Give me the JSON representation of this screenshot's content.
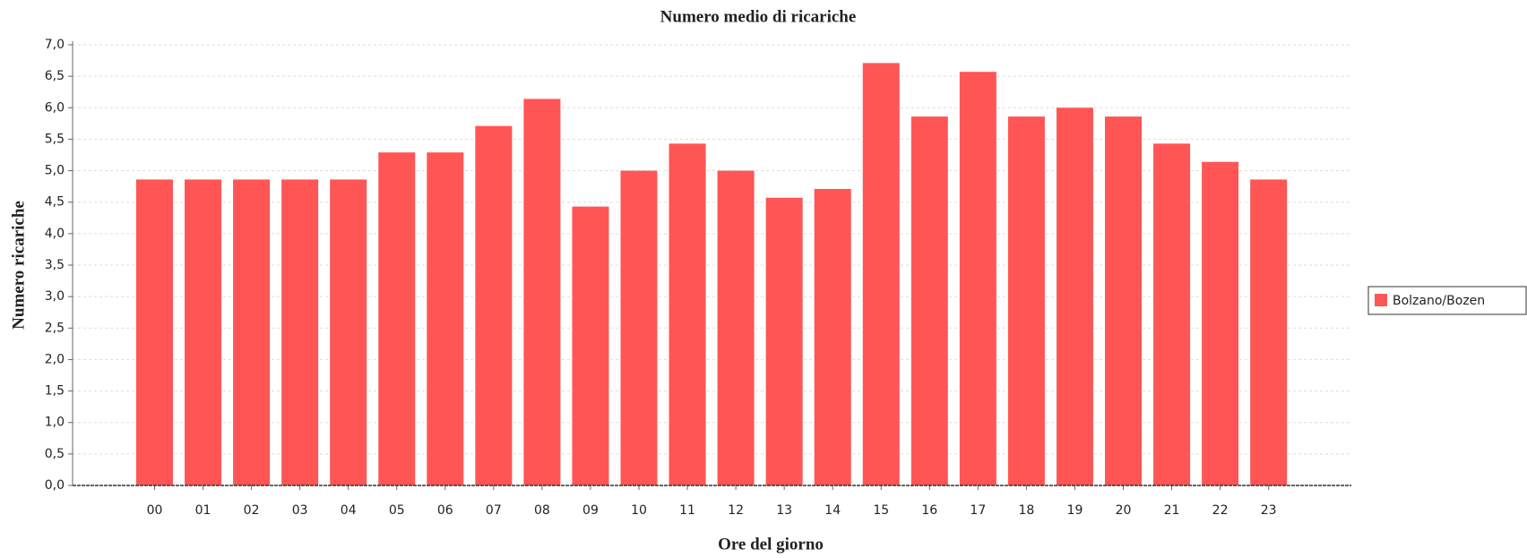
{
  "chart_data": {
    "type": "bar",
    "title": "Numero medio di ricariche",
    "x_label": "Ore del giorno",
    "y_label": "Numero ricariche",
    "categories": [
      "00",
      "01",
      "02",
      "03",
      "04",
      "05",
      "06",
      "07",
      "08",
      "09",
      "10",
      "11",
      "12",
      "13",
      "14",
      "15",
      "16",
      "17",
      "18",
      "19",
      "20",
      "21",
      "22",
      "23"
    ],
    "series": [
      {
        "name": "Bolzano/Bozen",
        "color": "#ff5555",
        "values": [
          4.86,
          4.86,
          4.86,
          4.86,
          4.86,
          5.29,
          5.29,
          5.71,
          6.14,
          4.43,
          5.0,
          5.43,
          5.0,
          4.57,
          4.71,
          6.71,
          5.86,
          6.57,
          5.86,
          6.0,
          5.86,
          5.43,
          5.14,
          4.86
        ]
      }
    ],
    "ylim": [
      0,
      7
    ],
    "yticks": [
      {
        "value": 0,
        "label": "0,0"
      },
      {
        "value": 0.5,
        "label": "0,5"
      },
      {
        "value": 1,
        "label": "1,0"
      },
      {
        "value": 1.5,
        "label": "1,5"
      },
      {
        "value": 2,
        "label": "2,0"
      },
      {
        "value": 2.5,
        "label": "2,5"
      },
      {
        "value": 3,
        "label": "3,0"
      },
      {
        "value": 3.5,
        "label": "3,5"
      },
      {
        "value": 4,
        "label": "4,0"
      },
      {
        "value": 4.5,
        "label": "4,5"
      },
      {
        "value": 5,
        "label": "5,0"
      },
      {
        "value": 5.5,
        "label": "5,5"
      },
      {
        "value": 6,
        "label": "6,0"
      },
      {
        "value": 6.5,
        "label": "6,5"
      },
      {
        "value": 7,
        "label": "7,0"
      }
    ],
    "grid": true,
    "legend": "right"
  }
}
